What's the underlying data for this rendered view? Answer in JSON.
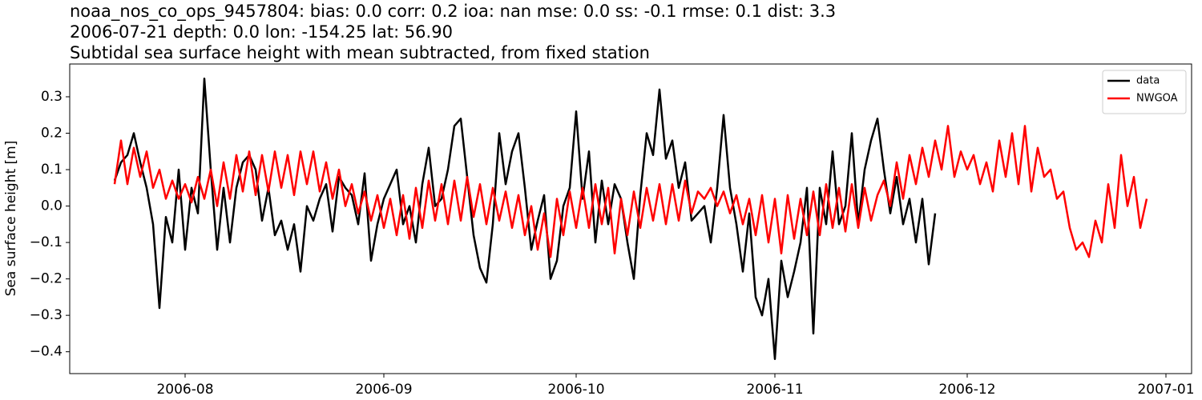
{
  "chart_data": {
    "type": "line",
    "title_lines": [
      "noaa_nos_co_ops_9457804: bias: 0.0  corr: 0.2  ioa: nan  mse: 0.0  ss: -0.1  rmse: 0.1  dist: 3.3",
      "2006-07-21 depth: 0.0 lon: -154.25 lat: 56.90",
      "Subtidal sea surface height with mean subtracted, from fixed station"
    ],
    "y_label": "Sea surface height [m]",
    "legend_position": "upper right",
    "xlim": [
      "2006-07-14",
      "2007-01-05"
    ],
    "xticks": [
      {
        "value": "2006-08-01",
        "label": "2006-08"
      },
      {
        "value": "2006-09-01",
        "label": "2006-09"
      },
      {
        "value": "2006-10-01",
        "label": "2006-10"
      },
      {
        "value": "2006-11-01",
        "label": "2006-11"
      },
      {
        "value": "2006-12-01",
        "label": "2006-12"
      },
      {
        "value": "2007-01-01",
        "label": "2007-01"
      }
    ],
    "ylim": [
      -0.46,
      0.39
    ],
    "yticks": [
      {
        "value": -0.4,
        "label": "−0.4"
      },
      {
        "value": -0.3,
        "label": "−0.3"
      },
      {
        "value": -0.2,
        "label": "−0.2"
      },
      {
        "value": -0.1,
        "label": "−0.1"
      },
      {
        "value": 0,
        "label": "0.0"
      },
      0.1,
      0.2,
      0.3
    ],
    "x": [
      "2006-07-21",
      "2006-07-22",
      "2006-07-23",
      "2006-07-24",
      "2006-07-25",
      "2006-07-26",
      "2006-07-27",
      "2006-07-28",
      "2006-07-29",
      "2006-07-30",
      "2006-07-31",
      "2006-08-01",
      "2006-08-02",
      "2006-08-03",
      "2006-08-04",
      "2006-08-05",
      "2006-08-06",
      "2006-08-07",
      "2006-08-08",
      "2006-08-09",
      "2006-08-10",
      "2006-08-11",
      "2006-08-12",
      "2006-08-13",
      "2006-08-14",
      "2006-08-15",
      "2006-08-16",
      "2006-08-17",
      "2006-08-18",
      "2006-08-19",
      "2006-08-20",
      "2006-08-21",
      "2006-08-22",
      "2006-08-23",
      "2006-08-24",
      "2006-08-25",
      "2006-08-26",
      "2006-08-27",
      "2006-08-28",
      "2006-08-29",
      "2006-08-30",
      "2006-08-31",
      "2006-09-01",
      "2006-09-02",
      "2006-09-03",
      "2006-09-04",
      "2006-09-05",
      "2006-09-06",
      "2006-09-07",
      "2006-09-08",
      "2006-09-09",
      "2006-09-10",
      "2006-09-11",
      "2006-09-12",
      "2006-09-13",
      "2006-09-14",
      "2006-09-15",
      "2006-09-16",
      "2006-09-17",
      "2006-09-18",
      "2006-09-19",
      "2006-09-20",
      "2006-09-21",
      "2006-09-22",
      "2006-09-23",
      "2006-09-24",
      "2006-09-25",
      "2006-09-26",
      "2006-09-27",
      "2006-09-28",
      "2006-09-29",
      "2006-09-30",
      "2006-10-01",
      "2006-10-02",
      "2006-10-03",
      "2006-10-04",
      "2006-10-05",
      "2006-10-06",
      "2006-10-07",
      "2006-10-08",
      "2006-10-09",
      "2006-10-10",
      "2006-10-11",
      "2006-10-12",
      "2006-10-13",
      "2006-10-14",
      "2006-10-15",
      "2006-10-16",
      "2006-10-17",
      "2006-10-18",
      "2006-10-19",
      "2006-10-20",
      "2006-10-21",
      "2006-10-22",
      "2006-10-23",
      "2006-10-24",
      "2006-10-25",
      "2006-10-26",
      "2006-10-27",
      "2006-10-28",
      "2006-10-29",
      "2006-10-30",
      "2006-10-31",
      "2006-11-01",
      "2006-11-02",
      "2006-11-03",
      "2006-11-04",
      "2006-11-05",
      "2006-11-06",
      "2006-11-07",
      "2006-11-08",
      "2006-11-09",
      "2006-11-10",
      "2006-11-11",
      "2006-11-12",
      "2006-11-13",
      "2006-11-14",
      "2006-11-15",
      "2006-11-16",
      "2006-11-17",
      "2006-11-18",
      "2006-11-19",
      "2006-11-20",
      "2006-11-21",
      "2006-11-22",
      "2006-11-23",
      "2006-11-24",
      "2006-11-25",
      "2006-11-26",
      "2006-11-27",
      "2006-11-28",
      "2006-11-29",
      "2006-11-30",
      "2006-12-01",
      "2006-12-02",
      "2006-12-03",
      "2006-12-04",
      "2006-12-05",
      "2006-12-06",
      "2006-12-07",
      "2006-12-08",
      "2006-12-09",
      "2006-12-10",
      "2006-12-11",
      "2006-12-12",
      "2006-12-13",
      "2006-12-14",
      "2006-12-15",
      "2006-12-16",
      "2006-12-17",
      "2006-12-18",
      "2006-12-19",
      "2006-12-20",
      "2006-12-21",
      "2006-12-22",
      "2006-12-23",
      "2006-12-24",
      "2006-12-25",
      "2006-12-26",
      "2006-12-27",
      "2006-12-28",
      "2006-12-29"
    ],
    "series": [
      {
        "name": "data",
        "color": "#000000",
        "values": [
          0.07,
          0.12,
          0.14,
          0.2,
          0.12,
          0.05,
          -0.05,
          -0.28,
          -0.03,
          -0.1,
          0.1,
          -0.12,
          0.05,
          -0.02,
          0.35,
          0.1,
          -0.12,
          0.05,
          -0.1,
          0.05,
          0.12,
          0.14,
          0.1,
          -0.04,
          0.05,
          -0.08,
          -0.04,
          -0.12,
          -0.05,
          -0.18,
          0.0,
          -0.04,
          0.02,
          0.06,
          -0.07,
          0.08,
          0.05,
          0.03,
          -0.05,
          0.09,
          -0.15,
          -0.05,
          0.02,
          0.06,
          0.1,
          -0.05,
          0.0,
          -0.1,
          0.06,
          0.16,
          0.0,
          0.02,
          0.1,
          0.22,
          0.24,
          0.08,
          -0.08,
          -0.17,
          -0.21,
          -0.05,
          0.2,
          0.06,
          0.15,
          0.2,
          0.05,
          -0.12,
          -0.04,
          0.03,
          -0.2,
          -0.15,
          0.0,
          0.05,
          0.26,
          0.02,
          0.15,
          -0.1,
          0.07,
          -0.05,
          0.06,
          0.02,
          -0.1,
          -0.2,
          0.03,
          0.2,
          0.14,
          0.32,
          0.13,
          0.18,
          0.05,
          0.12,
          -0.04,
          -0.02,
          0.0,
          -0.1,
          0.05,
          0.25,
          0.05,
          -0.05,
          -0.18,
          -0.02,
          -0.25,
          -0.3,
          -0.2,
          -0.42,
          -0.15,
          -0.25,
          -0.18,
          -0.1,
          0.05,
          -0.35,
          0.05,
          -0.05,
          0.15,
          -0.05,
          0.0,
          0.2,
          -0.05,
          0.1,
          0.18,
          0.24,
          0.1,
          -0.02,
          0.08,
          -0.05,
          0.02,
          -0.1,
          0.02,
          -0.16,
          -0.02,
          null,
          null,
          null,
          null,
          null,
          null,
          null,
          null,
          null,
          null,
          null,
          null,
          null,
          null,
          null,
          null,
          null,
          null,
          null,
          null,
          null,
          null,
          null,
          null,
          null,
          null,
          null,
          null,
          null,
          null,
          null,
          null,
          null
        ]
      },
      {
        "name": "NWGOA",
        "color": "#ff0000",
        "values": [
          0.06,
          0.18,
          0.06,
          0.16,
          0.08,
          0.15,
          0.05,
          0.1,
          0.02,
          0.07,
          0.02,
          0.06,
          0.01,
          0.08,
          0.02,
          0.1,
          0.0,
          0.12,
          0.02,
          0.14,
          0.04,
          0.15,
          0.03,
          0.14,
          0.04,
          0.15,
          0.05,
          0.14,
          0.03,
          0.15,
          0.06,
          0.15,
          0.04,
          0.12,
          0.02,
          0.1,
          0.0,
          0.06,
          -0.02,
          0.04,
          -0.04,
          0.03,
          -0.06,
          0.02,
          -0.08,
          0.03,
          -0.09,
          0.05,
          -0.06,
          0.07,
          -0.04,
          0.06,
          -0.05,
          0.07,
          -0.04,
          0.08,
          -0.03,
          0.06,
          -0.05,
          0.05,
          -0.04,
          0.04,
          -0.06,
          0.03,
          -0.08,
          0.0,
          -0.12,
          -0.02,
          -0.14,
          0.02,
          -0.08,
          0.04,
          -0.06,
          0.05,
          -0.06,
          0.06,
          -0.05,
          0.05,
          -0.13,
          0.02,
          -0.08,
          0.04,
          -0.06,
          0.05,
          -0.04,
          0.06,
          -0.05,
          0.06,
          -0.04,
          0.07,
          -0.02,
          0.04,
          0.02,
          0.05,
          0.0,
          0.04,
          -0.02,
          0.03,
          -0.05,
          0.02,
          -0.08,
          0.03,
          -0.1,
          0.02,
          -0.13,
          0.03,
          -0.09,
          0.02,
          -0.08,
          0.04,
          -0.08,
          0.06,
          -0.06,
          0.05,
          -0.07,
          0.06,
          -0.06,
          0.05,
          -0.04,
          0.03,
          0.07,
          0.0,
          0.12,
          0.02,
          0.14,
          0.06,
          0.16,
          0.08,
          0.18,
          0.1,
          0.22,
          0.08,
          0.15,
          0.1,
          0.14,
          0.06,
          0.12,
          0.04,
          0.18,
          0.08,
          0.2,
          0.06,
          0.22,
          0.04,
          0.16,
          0.08,
          0.1,
          0.02,
          0.04,
          -0.06,
          -0.12,
          -0.1,
          -0.14,
          -0.04,
          -0.1,
          0.06,
          -0.06,
          0.14,
          0.0,
          0.08,
          -0.06,
          0.02
        ]
      }
    ]
  }
}
